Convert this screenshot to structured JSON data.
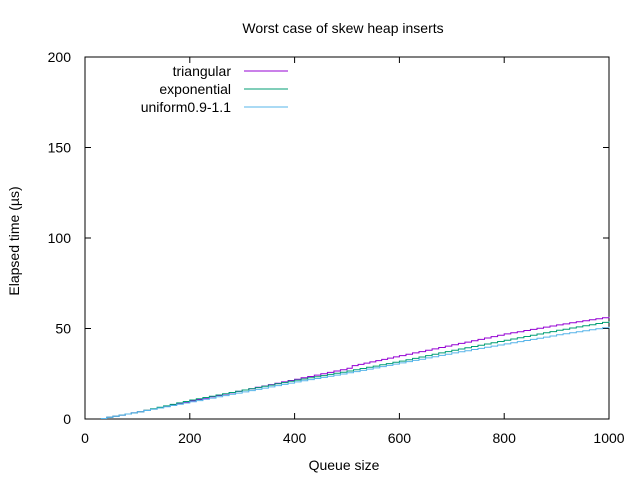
{
  "chart_data": {
    "type": "line",
    "title": "Worst case of skew heap inserts",
    "xlabel": "Queue size",
    "ylabel": "Elapsed time (µs)",
    "xlim": [
      0,
      1000
    ],
    "ylim": [
      0,
      200
    ],
    "xticks": [
      0,
      200,
      400,
      600,
      800,
      1000
    ],
    "yticks": [
      0,
      50,
      100,
      150,
      200
    ],
    "grid": false,
    "legend": "top-left",
    "step": true,
    "series": [
      {
        "name": "triangular",
        "color": "#9400d3",
        "points": [
          [
            30,
            0.3
          ],
          [
            100,
            4
          ],
          [
            200,
            10
          ],
          [
            300,
            16
          ],
          [
            400,
            22
          ],
          [
            500,
            28
          ],
          [
            510,
            29.5
          ],
          [
            600,
            35
          ],
          [
            700,
            41
          ],
          [
            800,
            47
          ],
          [
            900,
            52
          ],
          [
            1000,
            56.5
          ]
        ]
      },
      {
        "name": "exponential",
        "color": "#009e73",
        "points": [
          [
            30,
            0.3
          ],
          [
            100,
            4
          ],
          [
            200,
            10.5
          ],
          [
            300,
            16
          ],
          [
            400,
            21.5
          ],
          [
            500,
            26.5
          ],
          [
            600,
            32
          ],
          [
            700,
            38
          ],
          [
            800,
            43.5
          ],
          [
            900,
            49
          ],
          [
            1000,
            54
          ]
        ]
      },
      {
        "name": "uniform0.9-1.1",
        "color": "#56b4e9",
        "points": [
          [
            30,
            0.3
          ],
          [
            100,
            4
          ],
          [
            200,
            9.5
          ],
          [
            300,
            15
          ],
          [
            400,
            20.5
          ],
          [
            500,
            25.5
          ],
          [
            600,
            31
          ],
          [
            700,
            36.5
          ],
          [
            800,
            41.5
          ],
          [
            900,
            46.5
          ],
          [
            1000,
            51
          ]
        ]
      }
    ]
  }
}
